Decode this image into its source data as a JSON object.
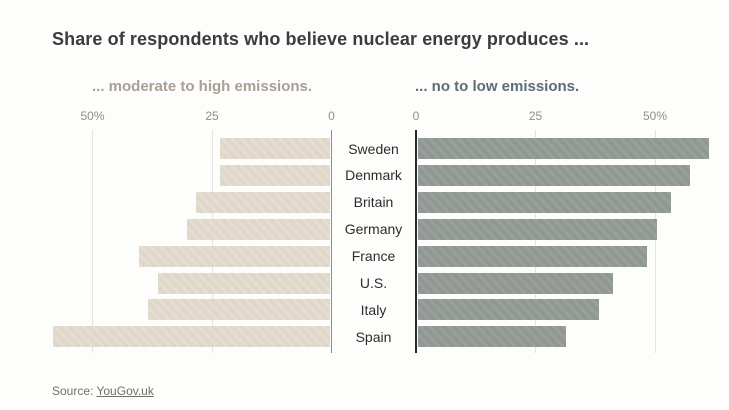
{
  "title": "Share of respondents who believe nuclear energy produces ...",
  "subtitles": {
    "left": "... moderate to high emissions.",
    "right": "... no to low emissions."
  },
  "axis": {
    "left_ticks": [
      {
        "label": "50%",
        "value": 50
      },
      {
        "label": "25",
        "value": 25
      },
      {
        "label": "0",
        "value": 0
      }
    ],
    "right_ticks": [
      {
        "label": "0",
        "value": 0
      },
      {
        "label": "25",
        "value": 25
      },
      {
        "label": "50%",
        "value": 50
      }
    ]
  },
  "chart_data": {
    "type": "bar",
    "variant": "diverging-horizontal-mirrored",
    "title": "Share of respondents who believe nuclear energy produces ...",
    "categories": [
      "Sweden",
      "Denmark",
      "Britain",
      "Germany",
      "France",
      "U.S.",
      "Italy",
      "Spain"
    ],
    "series": [
      {
        "name": "... moderate to high emissions.",
        "side": "left",
        "color": "#e3dbce",
        "values": [
          23,
          23,
          28,
          30,
          40,
          36,
          38,
          58
        ]
      },
      {
        "name": "... no to low emissions.",
        "side": "right",
        "color": "#949a95",
        "values": [
          61,
          57,
          53,
          50,
          48,
          41,
          38,
          31
        ]
      }
    ],
    "unit": "%",
    "xlim": [
      0,
      62
    ],
    "gridlines_at": [
      25,
      50
    ],
    "grid": true,
    "legend_position": "top-as-colored-subtitles"
  },
  "source": {
    "prefix": "Source: ",
    "link_text": "YouGov.uk"
  },
  "colors": {
    "background": "#fdfdfb",
    "title": "#3a3d3e",
    "subtitle_left": "#a89f95",
    "subtitle_right": "#5b6e76",
    "bar_left": "#e3dbce",
    "bar_right": "#949a95",
    "tick_label": "#8e8e8c",
    "country_label": "#2d2d2d",
    "gridline": "#e6e4df",
    "axis_left": "#8b8b88",
    "axis_right": "#2a2a2a",
    "source_text": "#6e6e6c"
  }
}
